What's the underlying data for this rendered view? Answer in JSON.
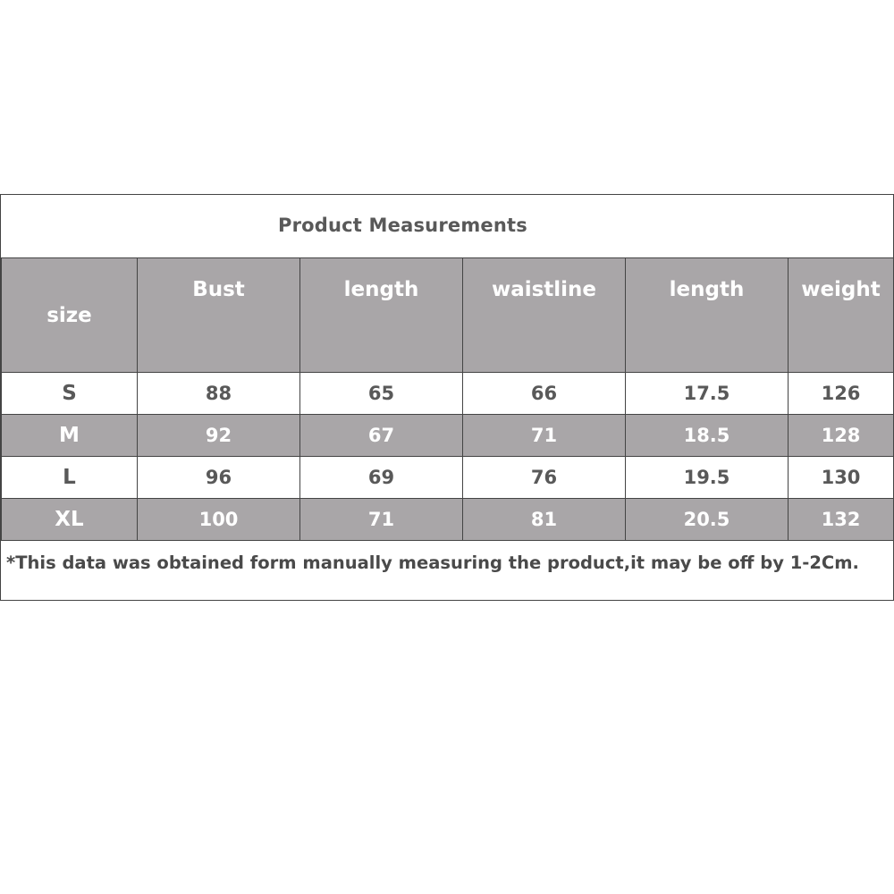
{
  "title": "Product Measurements",
  "colors": {
    "header_bg": "#a9a6a8",
    "header_text": "#ffffff",
    "body_text": "#595959",
    "border": "#444444"
  },
  "table": {
    "headers": [
      "size",
      "Bust",
      "length",
      "waistline",
      "length",
      "weight"
    ],
    "rows": [
      [
        "S",
        "88",
        "65",
        "66",
        "17.5",
        "126"
      ],
      [
        "M",
        "92",
        "67",
        "71",
        "18.5",
        "128"
      ],
      [
        "L",
        "96",
        "69",
        "76",
        "19.5",
        "130"
      ],
      [
        "XL",
        "100",
        "71",
        "81",
        "20.5",
        "132"
      ]
    ]
  },
  "note": "*This data was obtained form manually measuring the product,it may be off by 1-2Cm."
}
